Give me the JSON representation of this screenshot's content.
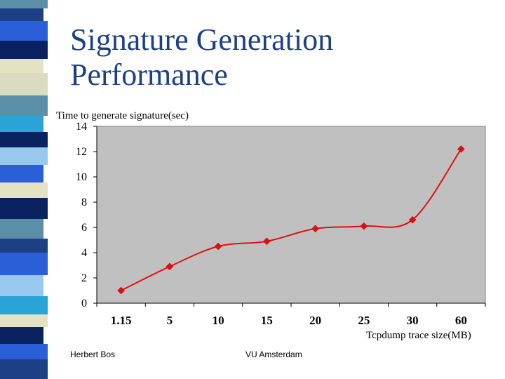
{
  "slide": {
    "title_line1": "Signature Generation",
    "title_line2": "Performance",
    "footer_left": "Herbert Bos",
    "footer_center": "VU Amsterdam"
  },
  "colors": {
    "title": "#1c3f86",
    "plot_bg": "#c0c0c0",
    "series": "#e01010"
  },
  "chart_data": {
    "type": "line",
    "categories": [
      "1.15",
      "5",
      "10",
      "15",
      "20",
      "25",
      "30",
      "60"
    ],
    "values": [
      1.0,
      2.9,
      4.5,
      4.9,
      5.9,
      6.1,
      6.6,
      12.2
    ],
    "ylabel": "Time to generate signature(sec)",
    "xlabel": "Tcpdump trace size(MB)",
    "ylim": [
      0,
      14
    ],
    "yticks": [
      0,
      2,
      4,
      6,
      8,
      10,
      12,
      14
    ],
    "grid": false,
    "legend": "none",
    "marker": "diamond",
    "smooth": true
  }
}
